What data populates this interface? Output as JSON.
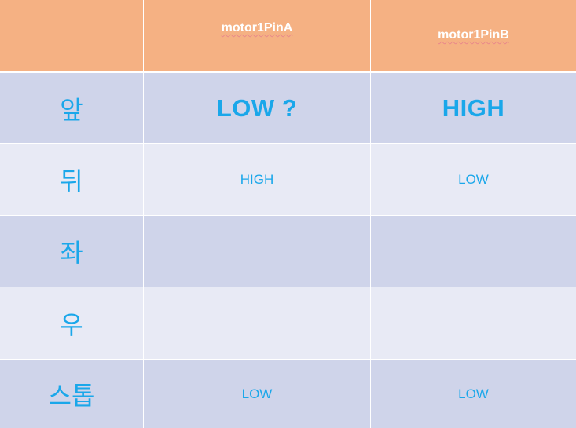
{
  "table": {
    "header": {
      "corner": "",
      "col_a": "motor1PinA",
      "col_b": "motor1PinB"
    },
    "rows": [
      {
        "label": "앞",
        "a": "LOW ?",
        "b": "HIGH"
      },
      {
        "label": "뒤",
        "a": "HIGH",
        "b": "LOW"
      },
      {
        "label": "좌",
        "a": "",
        "b": ""
      },
      {
        "label": "우",
        "a": "",
        "b": ""
      },
      {
        "label": "스톱",
        "a": "LOW",
        "b": "LOW"
      }
    ]
  },
  "colors": {
    "header_bg": "#f5b183",
    "row_dark_bg": "#cfd4ea",
    "row_light_bg": "#e8eaf5",
    "text_accent": "#1aa7ea",
    "header_text": "#ffffff"
  }
}
